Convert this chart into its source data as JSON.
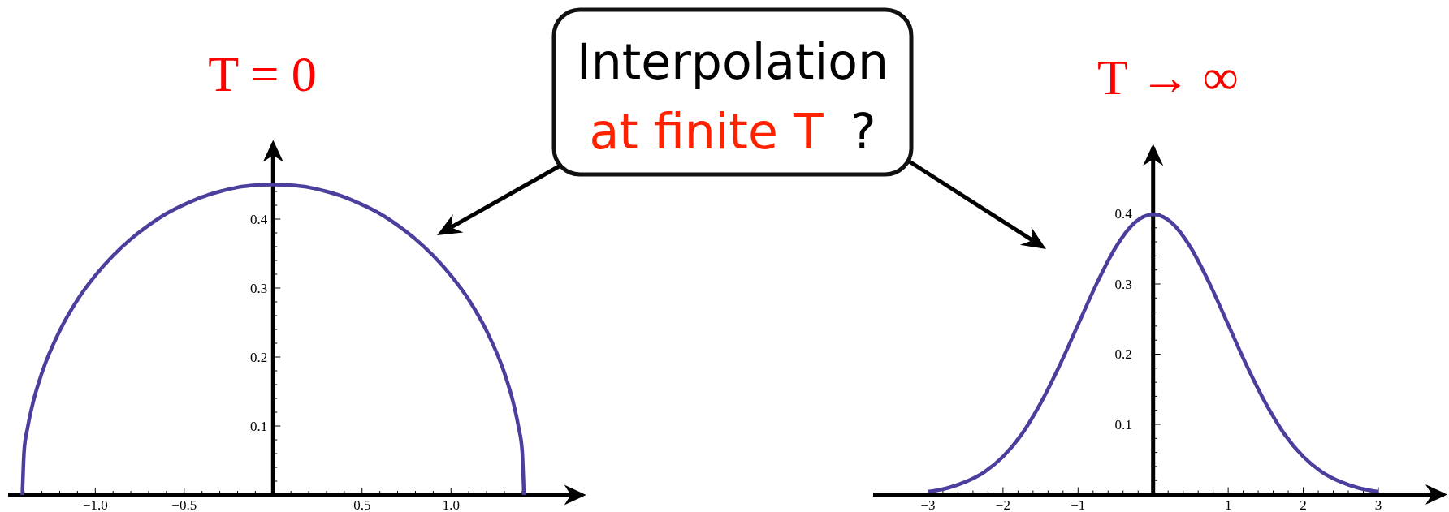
{
  "chart_data": [
    {
      "type": "line",
      "title": "T = 0",
      "x": [
        -1.41,
        -1.4,
        -1.38,
        -1.35,
        -1.3,
        -1.2,
        -1.1,
        -1,
        -0.9,
        -0.8,
        -0.7,
        -0.6,
        -0.5,
        -0.4,
        -0.3,
        -0.2,
        -0.1,
        0,
        0.1,
        0.2,
        0.3,
        0.4,
        0.5,
        0.6,
        0.7,
        0.8,
        0.9,
        1,
        1.1,
        1.2,
        1.3,
        1.35,
        1.38,
        1.4,
        1.41
      ],
      "series": [
        {
          "color": "#4b3f9e",
          "values": [
            0,
            0.064,
            0.098,
            0.134,
            0.177,
            0.238,
            0.283,
            0.318,
            0.347,
            0.371,
            0.391,
            0.408,
            0.421,
            0.432,
            0.44,
            0.446,
            0.449,
            0.45,
            0.449,
            0.446,
            0.44,
            0.432,
            0.421,
            0.408,
            0.391,
            0.371,
            0.347,
            0.318,
            0.283,
            0.238,
            0.177,
            0.134,
            0.098,
            0.064,
            0
          ]
        }
      ],
      "xlim": [
        -1.49,
        1.76
      ],
      "ylim": [
        0,
        0.51
      ],
      "xticks": [
        {
          "value": -1.4,
          "label": null
        },
        {
          "value": -1.3,
          "label": null
        },
        {
          "value": -1.2,
          "label": null
        },
        {
          "value": -1.1,
          "label": null
        },
        {
          "value": -1,
          "label": "−1.0"
        },
        {
          "value": -0.9,
          "label": null
        },
        {
          "value": -0.8,
          "label": null
        },
        {
          "value": -0.7,
          "label": null
        },
        {
          "value": -0.6,
          "label": null
        },
        {
          "value": -0.5,
          "label": "−0.5"
        },
        {
          "value": -0.4,
          "label": null
        },
        {
          "value": -0.3,
          "label": null
        },
        {
          "value": -0.2,
          "label": null
        },
        {
          "value": -0.1,
          "label": null
        },
        {
          "value": 0.1,
          "label": null
        },
        {
          "value": 0.2,
          "label": null
        },
        {
          "value": 0.3,
          "label": null
        },
        {
          "value": 0.4,
          "label": null
        },
        0.5,
        {
          "value": 0.6,
          "label": null
        },
        {
          "value": 0.7,
          "label": null
        },
        {
          "value": 0.8,
          "label": null
        },
        {
          "value": 0.9,
          "label": null
        },
        {
          "value": 1,
          "label": "1.0"
        },
        {
          "value": 1.1,
          "label": null
        },
        {
          "value": 1.2,
          "label": null
        },
        {
          "value": 1.3,
          "label": null
        },
        {
          "value": 1.4,
          "label": null
        }
      ],
      "yticks": [
        {
          "value": 0.02,
          "label": null
        },
        {
          "value": 0.04,
          "label": null
        },
        {
          "value": 0.06,
          "label": null
        },
        {
          "value": 0.08,
          "label": null
        },
        0.1,
        {
          "value": 0.12,
          "label": null
        },
        {
          "value": 0.14,
          "label": null
        },
        {
          "value": 0.16,
          "label": null
        },
        {
          "value": 0.18,
          "label": null
        },
        0.2,
        {
          "value": 0.22,
          "label": null
        },
        {
          "value": 0.24,
          "label": null
        },
        {
          "value": 0.26,
          "label": null
        },
        {
          "value": 0.28,
          "label": null
        },
        0.3,
        {
          "value": 0.32,
          "label": null
        },
        {
          "value": 0.34,
          "label": null
        },
        {
          "value": 0.36,
          "label": null
        },
        {
          "value": 0.38,
          "label": null
        },
        0.4,
        {
          "value": 0.42,
          "label": null
        },
        {
          "value": 0.44,
          "label": null
        }
      ]
    },
    {
      "type": "other",
      "annotations": [
        "Interpolation",
        "at finite T",
        "?"
      ]
    },
    {
      "type": "line",
      "title": "T → ∞",
      "x": [
        -3,
        -2.75,
        -2.5,
        -2.25,
        -2,
        -1.75,
        -1.5,
        -1.25,
        -1,
        -0.75,
        -0.5,
        -0.25,
        0,
        0.25,
        0.5,
        0.75,
        1,
        1.25,
        1.5,
        1.75,
        2,
        2.25,
        2.5,
        2.75,
        3
      ],
      "series": [
        {
          "color": "#4b3f9e",
          "values": [
            0.004,
            0.009,
            0.018,
            0.032,
            0.054,
            0.086,
            0.13,
            0.183,
            0.242,
            0.301,
            0.352,
            0.387,
            0.399,
            0.387,
            0.352,
            0.301,
            0.242,
            0.183,
            0.13,
            0.086,
            0.054,
            0.032,
            0.018,
            0.009,
            0.004
          ]
        }
      ],
      "xlim": [
        -3.73,
        3.92
      ],
      "ylim": [
        0,
        0.495
      ],
      "xticks": [
        {
          "value": -3,
          "label": "−3"
        },
        {
          "value": -2.8,
          "label": null
        },
        {
          "value": -2.6,
          "label": null
        },
        {
          "value": -2.4,
          "label": null
        },
        {
          "value": -2.2,
          "label": null
        },
        {
          "value": -2,
          "label": "−2"
        },
        {
          "value": -1.8,
          "label": null
        },
        {
          "value": -1.6,
          "label": null
        },
        {
          "value": -1.4,
          "label": null
        },
        {
          "value": -1.2,
          "label": null
        },
        {
          "value": -1,
          "label": "−1"
        },
        {
          "value": -0.8,
          "label": null
        },
        {
          "value": -0.6,
          "label": null
        },
        {
          "value": -0.4,
          "label": null
        },
        {
          "value": -0.2,
          "label": null
        },
        {
          "value": 0.2,
          "label": null
        },
        {
          "value": 0.4,
          "label": null
        },
        {
          "value": 0.6,
          "label": null
        },
        {
          "value": 0.8,
          "label": null
        },
        1,
        {
          "value": 1.2,
          "label": null
        },
        {
          "value": 1.4,
          "label": null
        },
        {
          "value": 1.6,
          "label": null
        },
        {
          "value": 1.8,
          "label": null
        },
        2,
        {
          "value": 2.2,
          "label": null
        },
        {
          "value": 2.4,
          "label": null
        },
        {
          "value": 2.6,
          "label": null
        },
        {
          "value": 2.8,
          "label": null
        },
        3
      ],
      "yticks": [
        {
          "value": 0.02,
          "label": null
        },
        {
          "value": 0.04,
          "label": null
        },
        {
          "value": 0.06,
          "label": null
        },
        {
          "value": 0.08,
          "label": null
        },
        0.1,
        {
          "value": 0.12,
          "label": null
        },
        {
          "value": 0.14,
          "label": null
        },
        {
          "value": 0.16,
          "label": null
        },
        {
          "value": 0.18,
          "label": null
        },
        0.2,
        {
          "value": 0.22,
          "label": null
        },
        {
          "value": 0.24,
          "label": null
        },
        {
          "value": 0.26,
          "label": null
        },
        {
          "value": 0.28,
          "label": null
        },
        0.3,
        {
          "value": 0.32,
          "label": null
        },
        {
          "value": 0.34,
          "label": null
        },
        {
          "value": 0.36,
          "label": null
        },
        {
          "value": 0.38,
          "label": null
        },
        0.4
      ]
    }
  ]
}
